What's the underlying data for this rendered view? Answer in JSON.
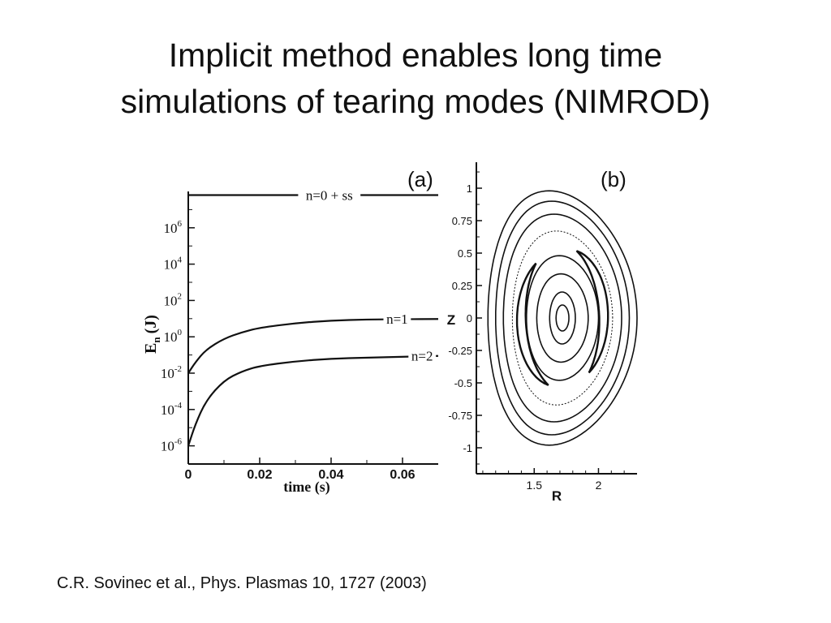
{
  "slide": {
    "title_lines": [
      "Implicit method enables long time",
      "simulations of tearing modes (NIMROD)"
    ],
    "citation": "C.R. Sovinec et al., Phys. Plasmas 10, 1727 (2003)"
  },
  "chart_data": [
    {
      "type": "line",
      "panel_label": "(a)",
      "xlabel": "time (s)",
      "ylabel_main": "E",
      "ylabel_sub": "n",
      "ylabel_unit": "(J)",
      "scale_y": "log",
      "xlim": [
        0,
        0.07
      ],
      "ylim_log10": [
        -7,
        8
      ],
      "x_ticks": [
        {
          "value": 0,
          "label": "0"
        },
        {
          "value": 0.02,
          "label": "0.02"
        },
        {
          "value": 0.04,
          "label": "0.04"
        },
        {
          "value": 0.06,
          "label": "0.06"
        }
      ],
      "y_ticks": [
        {
          "exp": -6,
          "base": "10",
          "sup": "-6"
        },
        {
          "exp": -4,
          "base": "10",
          "sup": "-4"
        },
        {
          "exp": -2,
          "base": "10",
          "sup": "-2"
        },
        {
          "exp": 0,
          "base": "10",
          "sup": "0"
        },
        {
          "exp": 2,
          "base": "10",
          "sup": "2"
        },
        {
          "exp": 4,
          "base": "10",
          "sup": "4"
        },
        {
          "exp": 6,
          "base": "10",
          "sup": "6"
        }
      ],
      "series": [
        {
          "name": "n=0 + ss",
          "x": [
            0,
            0.01,
            0.02,
            0.03,
            0.04,
            0.05,
            0.06,
            0.07
          ],
          "log10_y": [
            7.8,
            7.8,
            7.8,
            7.8,
            7.8,
            7.8,
            7.8,
            7.8
          ]
        },
        {
          "name": "n=1",
          "x": [
            0,
            0.002,
            0.005,
            0.01,
            0.015,
            0.02,
            0.03,
            0.04,
            0.05,
            0.06,
            0.07
          ],
          "log10_y": [
            -2.0,
            -1.4,
            -0.7,
            -0.1,
            0.25,
            0.5,
            0.75,
            0.9,
            0.95,
            0.97,
            0.98
          ]
        },
        {
          "name": "n=2",
          "x": [
            0,
            0.002,
            0.005,
            0.01,
            0.015,
            0.02,
            0.03,
            0.04,
            0.05,
            0.06,
            0.07
          ],
          "log10_y": [
            -6.0,
            -4.8,
            -3.5,
            -2.4,
            -1.9,
            -1.6,
            -1.35,
            -1.2,
            -1.15,
            -1.1,
            -1.05
          ]
        }
      ]
    },
    {
      "type": "scatter",
      "panel_label": "(b)",
      "xlabel": "R",
      "ylabel": "Z",
      "xlim": [
        1.05,
        2.3
      ],
      "ylim": [
        -1.2,
        1.2
      ],
      "x_ticks": [
        {
          "value": 1.5,
          "label": "1.5"
        },
        {
          "value": 2,
          "label": "2"
        }
      ],
      "y_ticks": [
        {
          "value": 1,
          "label": "1"
        },
        {
          "value": 0.75,
          "label": "0.75"
        },
        {
          "value": 0.5,
          "label": "0.5"
        },
        {
          "value": 0.25,
          "label": "0.25"
        },
        {
          "value": 0,
          "label": "0"
        },
        {
          "value": -0.25,
          "label": "-0.25"
        },
        {
          "value": -0.5,
          "label": "-0.5"
        },
        {
          "value": -0.75,
          "label": "-0.75"
        },
        {
          "value": -1,
          "label": "-1"
        }
      ],
      "flux_surfaces": {
        "center_r": 1.72,
        "center_z": 0.0,
        "half_widths_r": [
          0.58,
          0.52,
          0.46,
          0.39,
          0.28,
          0.2,
          0.1,
          0.05
        ],
        "half_heights_z": [
          0.98,
          0.9,
          0.8,
          0.67,
          0.48,
          0.34,
          0.2,
          0.1
        ]
      },
      "islands": [
        {
          "center_r": 1.72,
          "center_z": 0.0,
          "half_width_r": 0.32,
          "half_height_z": 0.55,
          "start_deg": -50,
          "end_deg": 70
        },
        {
          "center_r": 1.72,
          "center_z": 0.0,
          "half_width_r": 0.32,
          "half_height_z": 0.55,
          "start_deg": 130,
          "end_deg": 250
        }
      ]
    }
  ]
}
